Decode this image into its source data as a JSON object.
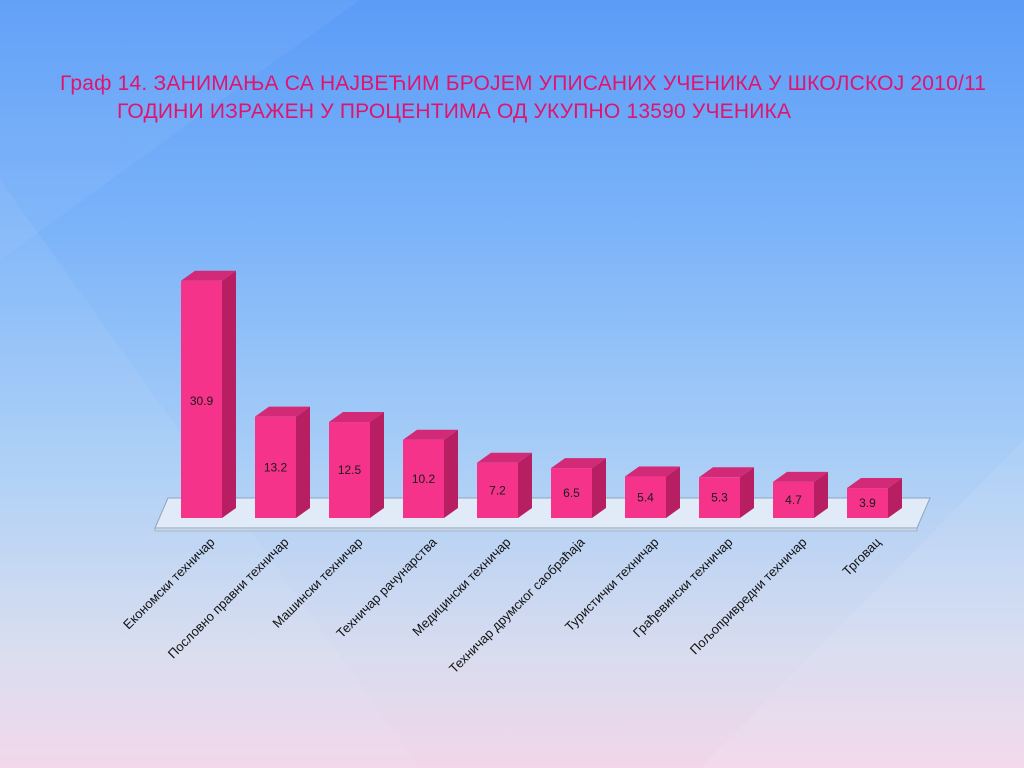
{
  "title": "Граф 14. ЗАНИМАЊА  СА  НАЈВЕЋИМ  БРОЈЕМ  УПИСАНИХ  УЧЕНИКА  У ШКОЛСКОЈ  2010/11  ГОДИНИ  ИЗРАЖЕН  У ПРОЦЕНТИМА ОД УКУПНО 13590  УЧЕНИКА",
  "colors": {
    "bar_front": "#f5338a",
    "bar_side": "#b81f63",
    "bar_top": "#d22a76",
    "title": "#e0146e"
  },
  "chart_data": {
    "type": "bar",
    "categories": [
      "Економски техничар",
      "Пословно правни техничар",
      "Машински техничар",
      "Техничар рачунарства",
      "Медицински техничар",
      "Техничар друмског саобраћаја",
      "Туристички техничар",
      "Грађевински техничар",
      "Пољопривредни техничар",
      "Трговац"
    ],
    "values": [
      30.9,
      13.2,
      12.5,
      10.2,
      7.2,
      6.5,
      5.4,
      5.3,
      4.7,
      3.9
    ],
    "data_labels": [
      "30.9",
      "13.2",
      "12.5",
      "10.2",
      "7.2",
      "6.5",
      "5.4",
      "5.3",
      "4.7",
      "3.9"
    ],
    "ylim": [
      0,
      31
    ],
    "grid": false,
    "legend": "none",
    "style": "3d-column"
  }
}
